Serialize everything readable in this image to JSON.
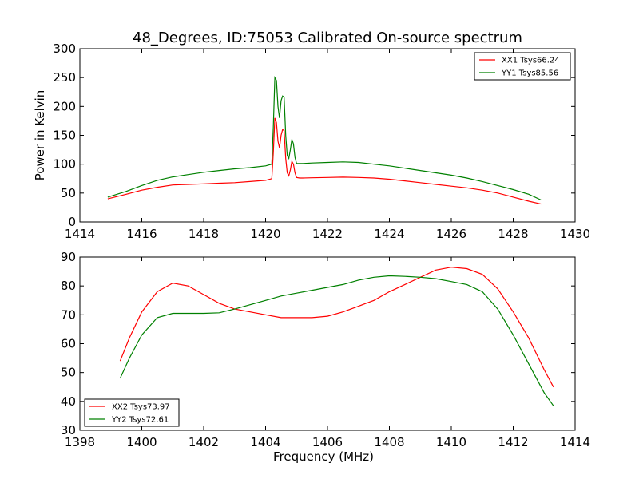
{
  "title": "48_Degrees, ID:75053 Calibrated On-source spectrum",
  "chart_data": [
    {
      "type": "line",
      "xlabel": "",
      "ylabel": "Power in Kelvin",
      "xlim": [
        1414,
        1430
      ],
      "ylim": [
        0,
        300
      ],
      "xticks": [
        1414,
        1416,
        1418,
        1420,
        1422,
        1424,
        1426,
        1428,
        1430
      ],
      "yticks": [
        0,
        50,
        100,
        150,
        200,
        250,
        300
      ],
      "legend_position": "top-right",
      "series": [
        {
          "name": "XX1 Tsys66.24",
          "color": "#ff0000",
          "x": [
            1414.9,
            1415.5,
            1416,
            1416.5,
            1417,
            1417.5,
            1418,
            1418.5,
            1419,
            1419.5,
            1420,
            1420.2,
            1420.25,
            1420.3,
            1420.35,
            1420.4,
            1420.45,
            1420.5,
            1420.55,
            1420.6,
            1420.65,
            1420.7,
            1420.75,
            1420.8,
            1420.85,
            1420.9,
            1420.95,
            1421,
            1421.1,
            1421.2,
            1421.5,
            1422,
            1422.5,
            1423,
            1423.5,
            1424,
            1424.5,
            1425,
            1425.5,
            1426,
            1426.5,
            1427,
            1427.5,
            1428,
            1428.5,
            1428.9
          ],
          "y": [
            40,
            48,
            55,
            60,
            64,
            65,
            66,
            67,
            68,
            70,
            72,
            75,
            120,
            180,
            172,
            140,
            128,
            150,
            160,
            158,
            110,
            85,
            80,
            90,
            105,
            100,
            85,
            77,
            76,
            76,
            76.5,
            77,
            77.5,
            77,
            76,
            74,
            71,
            68,
            65,
            62,
            59,
            55,
            50,
            43,
            36,
            31
          ]
        },
        {
          "name": "YY1 Tsys85.56",
          "color": "#008000",
          "x": [
            1414.9,
            1415.5,
            1416,
            1416.5,
            1417,
            1417.5,
            1418,
            1418.5,
            1419,
            1419.5,
            1420,
            1420.2,
            1420.25,
            1420.3,
            1420.35,
            1420.4,
            1420.45,
            1420.5,
            1420.55,
            1420.6,
            1420.65,
            1420.7,
            1420.75,
            1420.8,
            1420.85,
            1420.9,
            1420.95,
            1421,
            1421.1,
            1421.2,
            1421.5,
            1422,
            1422.5,
            1423,
            1423.5,
            1424,
            1424.5,
            1425,
            1425.5,
            1426,
            1426.5,
            1427,
            1427.5,
            1428,
            1428.5,
            1428.9
          ],
          "y": [
            43,
            53,
            63,
            72,
            78,
            82,
            86,
            89,
            92,
            94,
            97,
            100,
            165,
            250,
            245,
            200,
            180,
            210,
            218,
            216,
            150,
            115,
            110,
            125,
            143,
            135,
            112,
            101,
            101,
            101,
            102,
            103,
            104,
            103,
            100,
            97,
            93,
            89,
            85,
            81,
            76,
            70,
            63,
            56,
            48,
            38
          ]
        }
      ]
    },
    {
      "type": "line",
      "xlabel": "Frequency (MHz)",
      "ylabel": "",
      "xlim": [
        1398,
        1414
      ],
      "ylim": [
        30,
        90
      ],
      "xticks": [
        1398,
        1400,
        1402,
        1404,
        1406,
        1408,
        1410,
        1412,
        1414
      ],
      "yticks": [
        30,
        40,
        50,
        60,
        70,
        80,
        90
      ],
      "legend_position": "bottom-left",
      "series": [
        {
          "name": "XX2 Tsys73.97",
          "color": "#ff0000",
          "x": [
            1399.3,
            1399.6,
            1400,
            1400.5,
            1401,
            1401.5,
            1402,
            1402.5,
            1403,
            1403.5,
            1404,
            1404.5,
            1405,
            1405.5,
            1406,
            1406.5,
            1407,
            1407.5,
            1408,
            1408.5,
            1409,
            1409.5,
            1410,
            1410.5,
            1411,
            1411.5,
            1412,
            1412.5,
            1413,
            1413.3
          ],
          "y": [
            54,
            62,
            71,
            78,
            81,
            80,
            77,
            74,
            72,
            71,
            70,
            69,
            69,
            69,
            69.5,
            71,
            73,
            75,
            78,
            80.5,
            83,
            85.5,
            86.5,
            86,
            84,
            79,
            71,
            62,
            51,
            45
          ]
        },
        {
          "name": "YY2 Tsys72.61",
          "color": "#008000",
          "x": [
            1399.3,
            1399.6,
            1400,
            1400.5,
            1401,
            1401.5,
            1402,
            1402.5,
            1403,
            1403.5,
            1404,
            1404.5,
            1405,
            1405.5,
            1406,
            1406.5,
            1407,
            1407.5,
            1408,
            1408.5,
            1409,
            1409.5,
            1410,
            1410.5,
            1411,
            1411.5,
            1412,
            1412.5,
            1413,
            1413.3
          ],
          "y": [
            48,
            55,
            63,
            69,
            70.5,
            70.5,
            70.5,
            70.7,
            72,
            73.5,
            75,
            76.5,
            77.5,
            78.5,
            79.5,
            80.5,
            82,
            83,
            83.5,
            83.3,
            83,
            82.5,
            81.5,
            80.5,
            78,
            72,
            63,
            53,
            43,
            38.5
          ]
        }
      ]
    }
  ]
}
